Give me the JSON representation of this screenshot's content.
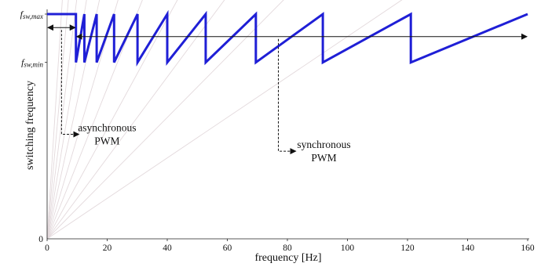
{
  "chart_data": {
    "type": "line",
    "xlabel": "frequency [Hz]",
    "ylabel": "switching frequency",
    "xlim": [
      0,
      160
    ],
    "ylim": [
      0,
      1.0
    ],
    "x_ticks": [
      "0",
      "20",
      "40",
      "60",
      "80",
      "100",
      "120",
      "140",
      "160"
    ],
    "x_tick_values": [
      0,
      20,
      40,
      60,
      80,
      100,
      120,
      140,
      160
    ],
    "y_ticks": [
      {
        "label_main": "f",
        "label_sub": "sw,max",
        "value": 1.0
      },
      {
        "label_main": "f",
        "label_sub": "sw,min",
        "value": 0.785
      },
      {
        "label_main": "0",
        "label_sub": "",
        "value": 0
      }
    ],
    "grid": false,
    "series": [
      {
        "color": "#1f1fd6",
        "x": [
          0,
          9.6,
          9.6,
          12.4,
          12.4,
          16.5,
          16.5,
          22.3,
          22.3,
          30.1,
          30.1,
          40.0,
          40.0,
          52.8,
          52.8,
          69.5,
          69.5,
          91.8,
          91.8,
          121.1,
          121.1,
          160
        ],
        "y": [
          1.0,
          1.0,
          0.785,
          1.0,
          0.785,
          1.0,
          0.785,
          1.0,
          0.785,
          1.0,
          0.785,
          1.0,
          0.785,
          1.0,
          0.785,
          1.0,
          0.785,
          1.0,
          0.785,
          1.0,
          0.785,
          1.0
        ]
      }
    ],
    "guide_line_slopes": [
      0.009,
      0.0135,
      0.018,
      0.0245,
      0.0335,
      0.045,
      0.061,
      0.081,
      0.108,
      0.15,
      0.21
    ],
    "guide_line_color": "#e3d9dc",
    "annotations": [
      {
        "name": "asynchronous",
        "lines": [
          "asynchronous",
          "PWM"
        ],
        "arrow_x": [
          0,
          9.6
        ],
        "arrow_y": 0.94,
        "leader_x": 4.8,
        "leader_y": 0.465
      },
      {
        "name": "synchronous",
        "lines": [
          "synchronous",
          "PWM"
        ],
        "arrow_x": [
          9.6,
          160
        ],
        "arrow_y": 0.9,
        "leader_x": 77,
        "leader_y": 0.39
      }
    ]
  }
}
